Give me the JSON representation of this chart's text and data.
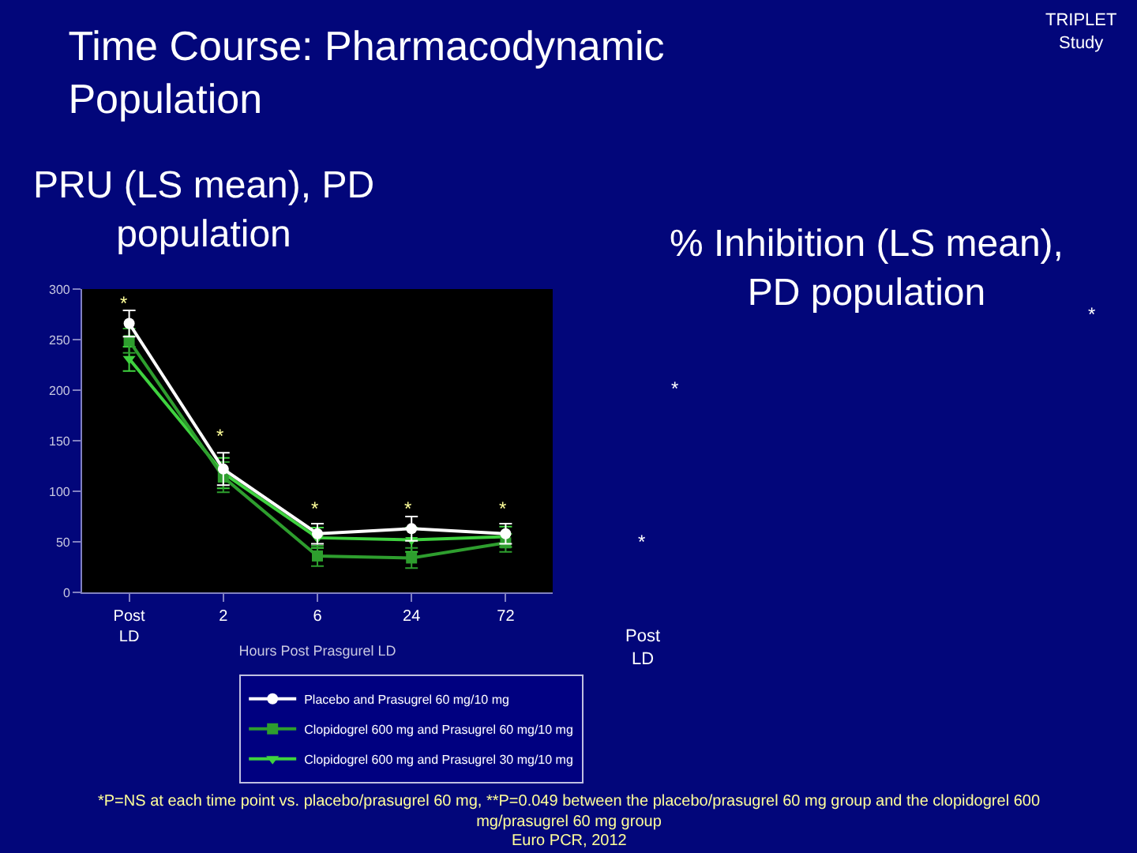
{
  "chart_data": {
    "type": "line",
    "title": "Time Course: Pharmacodynamic\nPopulation",
    "subtitle": "PRU (LS mean), PD\npopulation",
    "xlabel": "Hours Post Prasgurel LD",
    "categories": [
      "Post LD",
      "2",
      "6",
      "24",
      "72"
    ],
    "series": [
      {
        "name": "Placebo and Prasugrel 60 mg/10 mg",
        "color": "#ffffff",
        "marker": "circle",
        "values": [
          266,
          122,
          58,
          63,
          58
        ],
        "errors": [
          13,
          16,
          10,
          12,
          10
        ]
      },
      {
        "name": "Clopidogrel 600 mg and Prasugrel 60 mg/10 mg",
        "color": "#2e9e2e",
        "marker": "square",
        "values": [
          249,
          114,
          36,
          34,
          49
        ],
        "errors": [
          12,
          15,
          10,
          10,
          9
        ]
      },
      {
        "name": "Clopidogrel 600 mg and Prasugrel 30 mg/10 mg",
        "color": "#3fd23f",
        "marker": "triangle",
        "values": [
          231,
          118,
          54,
          52,
          55
        ],
        "errors": [
          12,
          15,
          10,
          12,
          10
        ]
      }
    ],
    "ylim": [
      0,
      300
    ],
    "yticks": [
      0,
      50,
      100,
      150,
      200,
      250,
      300
    ],
    "grid": false,
    "legend": "bottom",
    "line_style": "solid",
    "annotations": [
      "*",
      "*",
      "*",
      "*",
      "*",
      "*",
      "*",
      "*",
      "TRIPLET\nStudy",
      "% Inhibition (LS mean),\nPD population",
      "Post\nLD",
      "*P=NS at each time point vs. placebo/prasugrel 60 mg, **P=0.049 between the placebo/prasugrel 60 mg group and the clopidogrel 600\nmg/prasugrel 60 mg group",
      "Euro PCR, 2012"
    ]
  }
}
